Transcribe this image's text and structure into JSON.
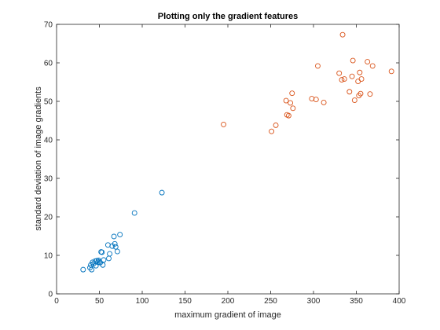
{
  "chart_data": {
    "type": "scatter",
    "title": "Plotting only the gradient features",
    "xlabel": "maximum gradient of image",
    "ylabel": "standard deviation of image gradients",
    "xlim": [
      0,
      400
    ],
    "ylim": [
      0,
      70
    ],
    "xticks": [
      0,
      50,
      100,
      150,
      200,
      250,
      300,
      350,
      400
    ],
    "yticks": [
      0,
      10,
      20,
      30,
      40,
      50,
      60,
      70
    ],
    "grid": false,
    "legend": "none",
    "series": [
      {
        "color": "#0072BD",
        "marker": "circle-open",
        "points": [
          [
            31,
            6.3
          ],
          [
            39,
            6.8
          ],
          [
            40,
            7.5
          ],
          [
            41,
            6.3
          ],
          [
            42,
            8.2
          ],
          [
            43,
            7.8
          ],
          [
            45,
            8.5
          ],
          [
            46,
            7.3
          ],
          [
            47,
            8.6
          ],
          [
            48,
            8.2
          ],
          [
            49,
            8.7
          ],
          [
            50,
            8.3
          ],
          [
            51,
            8.1
          ],
          [
            52,
            10.9
          ],
          [
            53,
            10.8
          ],
          [
            54,
            7.5
          ],
          [
            55,
            8.8
          ],
          [
            60,
            12.7
          ],
          [
            61,
            9.2
          ],
          [
            62,
            10.4
          ],
          [
            65,
            12.4
          ],
          [
            67,
            14.9
          ],
          [
            68,
            13.0
          ],
          [
            69,
            12.2
          ],
          [
            71,
            11.0
          ],
          [
            74,
            15.4
          ],
          [
            91,
            21.0
          ],
          [
            123,
            26.3
          ]
        ]
      },
      {
        "color": "#D95319",
        "marker": "circle-open",
        "points": [
          [
            195,
            44.0
          ],
          [
            251,
            42.2
          ],
          [
            256,
            43.8
          ],
          [
            268,
            50.2
          ],
          [
            269,
            46.5
          ],
          [
            271,
            46.3
          ],
          [
            273,
            49.6
          ],
          [
            275,
            52.1
          ],
          [
            276,
            48.2
          ],
          [
            298,
            50.7
          ],
          [
            303,
            50.5
          ],
          [
            305,
            59.2
          ],
          [
            312,
            49.7
          ],
          [
            330,
            57.3
          ],
          [
            333,
            55.6
          ],
          [
            334,
            67.3
          ],
          [
            336,
            55.8
          ],
          [
            342,
            52.5
          ],
          [
            345,
            56.5
          ],
          [
            346,
            60.6
          ],
          [
            348,
            50.3
          ],
          [
            352,
            55.2
          ],
          [
            353,
            51.5
          ],
          [
            354,
            57.5
          ],
          [
            355,
            52.0
          ],
          [
            356,
            55.8
          ],
          [
            363,
            60.3
          ],
          [
            366,
            51.9
          ],
          [
            369,
            59.2
          ],
          [
            391,
            57.8
          ]
        ]
      }
    ]
  }
}
